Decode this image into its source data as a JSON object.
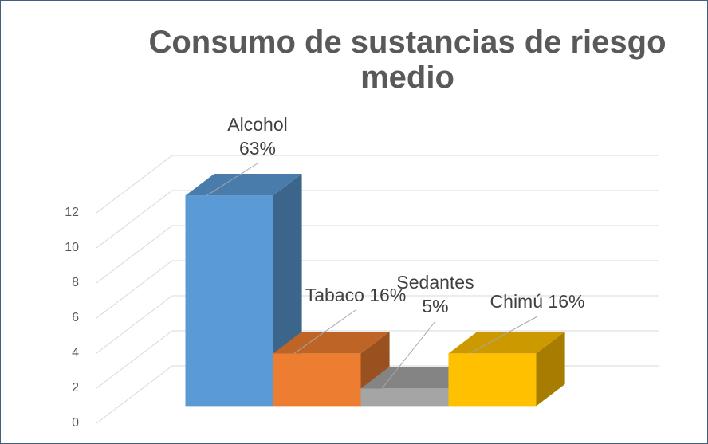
{
  "chart_data": {
    "type": "bar3d",
    "title": "Consumo de sustancias de riesgo medio",
    "categories": [
      "Alcohol",
      "Tabaco",
      "Sedantes",
      "Chimú"
    ],
    "values": [
      12,
      3,
      1,
      3
    ],
    "data_labels": [
      "Alcohol 63%",
      "Tabaco 16%",
      "Sedantes 5%",
      "Chimú 16%"
    ],
    "colors": [
      "#5b9bd5",
      "#ed7d31",
      "#a5a5a5",
      "#ffc000"
    ],
    "ylim": [
      0,
      12
    ],
    "yticks": [
      0,
      2,
      4,
      6,
      8,
      10,
      12
    ],
    "grid": true
  }
}
